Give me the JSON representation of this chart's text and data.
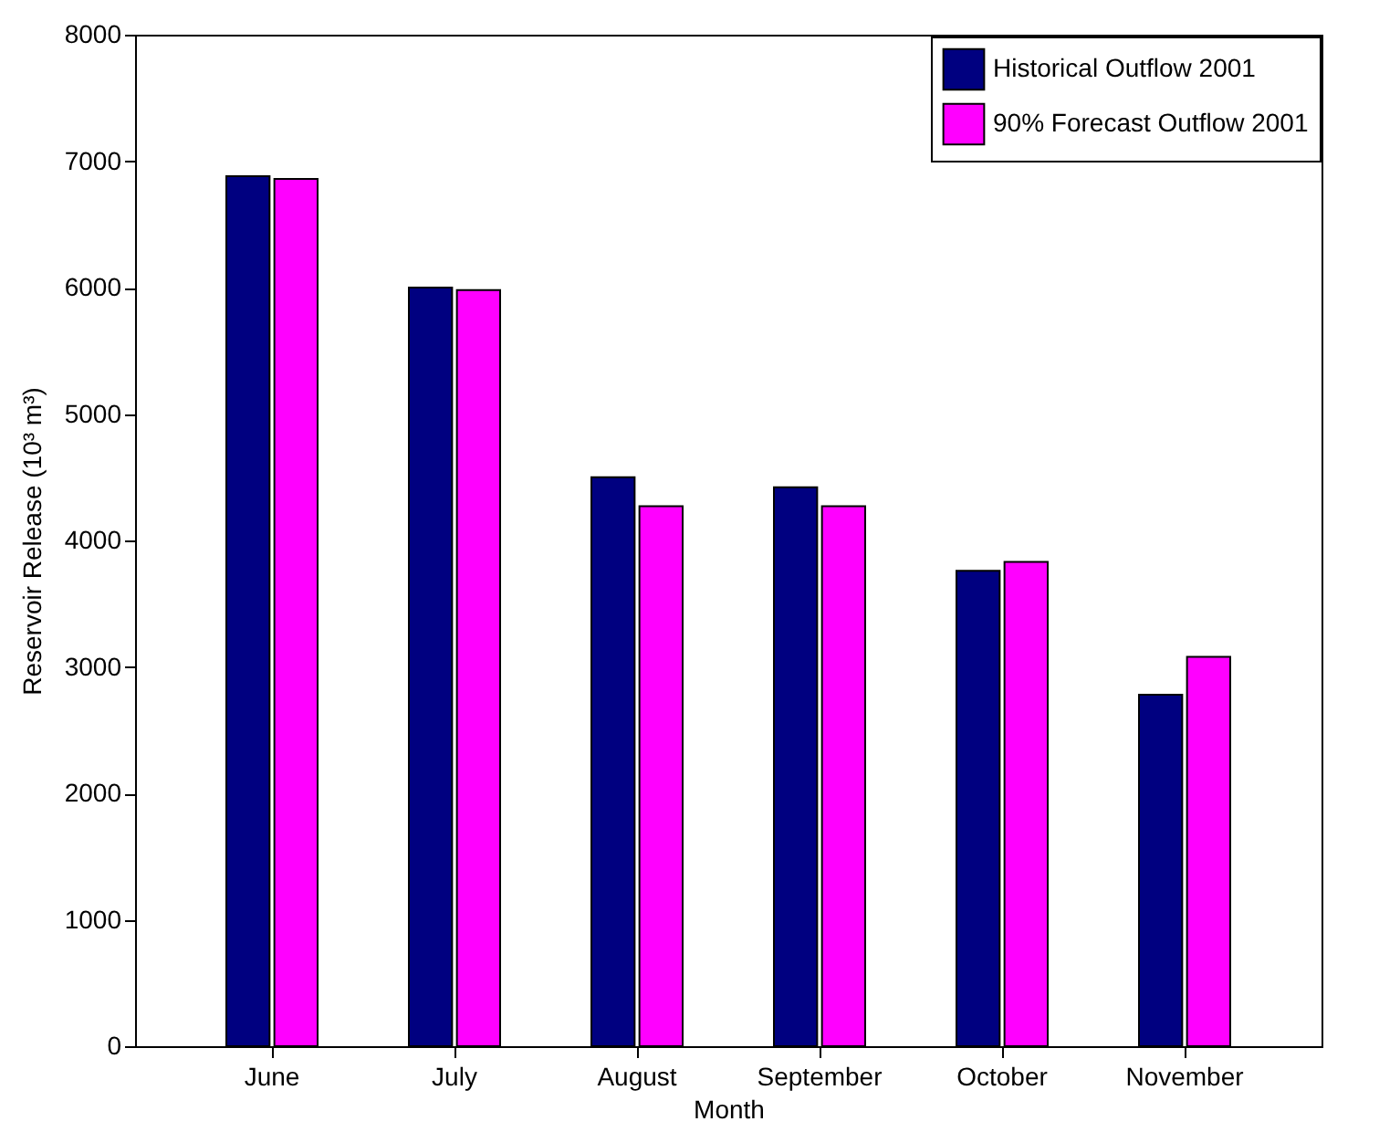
{
  "chart_data": {
    "type": "bar",
    "xlabel": "Month",
    "ylabel": "Reservoir Release (10³ m³)",
    "categories": [
      "June",
      "July",
      "August",
      "September",
      "October",
      "November"
    ],
    "series": [
      {
        "name": "Historical Outflow 2001",
        "color": "#000080",
        "values": [
          6880,
          6000,
          4500,
          4420,
          3760,
          2780
        ]
      },
      {
        "name": "90% Forecast Outflow 2001",
        "color": "#ff00ff",
        "values": [
          6860,
          5980,
          4270,
          4270,
          3830,
          3080
        ]
      }
    ],
    "ylim": [
      0,
      8000
    ],
    "yticks": [
      0,
      1000,
      2000,
      3000,
      4000,
      5000,
      6000,
      7000,
      8000
    ],
    "grid": false,
    "legend": "top right"
  }
}
